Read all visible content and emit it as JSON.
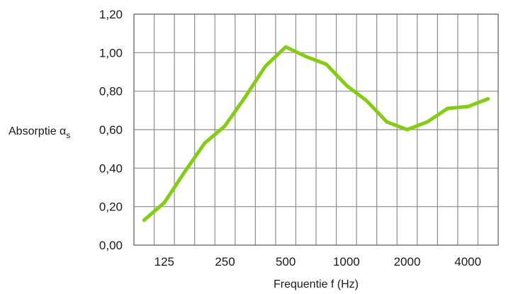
{
  "chart_data": {
    "type": "line",
    "title": "",
    "xlabel": "Frequentie f (Hz)",
    "ylabel_main": "Absorptie α",
    "ylabel_sub": "s",
    "x_scale": "log",
    "x_categories": [
      "100",
      "125",
      "160",
      "200",
      "250",
      "315",
      "400",
      "500",
      "630",
      "800",
      "1000",
      "1250",
      "1600",
      "2000",
      "2500",
      "3150",
      "4000",
      "5000"
    ],
    "x_tick_labels": [
      "125",
      "250",
      "500",
      "1000",
      "2000",
      "4000"
    ],
    "y_ticks": [
      "0,00",
      "0,20",
      "0,40",
      "0,60",
      "0,80",
      "1,00",
      "1,20"
    ],
    "ylim": [
      0,
      1.2
    ],
    "grid": true,
    "series": [
      {
        "color": "#84cc16",
        "values": [
          0.13,
          0.22,
          0.38,
          0.53,
          0.62,
          0.77,
          0.93,
          1.03,
          0.98,
          0.94,
          0.83,
          0.75,
          0.64,
          0.6,
          0.64,
          0.71,
          0.72,
          0.76
        ]
      }
    ]
  }
}
